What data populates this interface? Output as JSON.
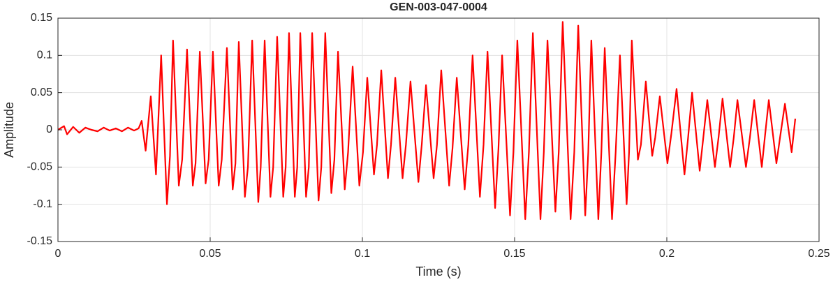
{
  "chart_data": {
    "type": "line",
    "title": "GEN-003-047-0004",
    "xlabel": "Time (s)",
    "ylabel": "Amplitude",
    "xlim": [
      0,
      0.25
    ],
    "xticks": [
      0,
      0.05,
      0.1,
      0.15,
      0.2,
      0.25
    ],
    "ylim": [
      -0.15,
      0.15
    ],
    "yticks": [
      -0.15,
      -0.1,
      -0.05,
      0,
      0.05,
      0.1,
      0.15
    ],
    "grid": true,
    "x": [
      0,
      0.002,
      0.003,
      0.005,
      0.007,
      0.009,
      0.011,
      0.013,
      0.015,
      0.017,
      0.019,
      0.021,
      0.023,
      0.025,
      0.0265,
      0.0275,
      0.0288,
      0.0305,
      0.0322,
      0.0339,
      0.0358,
      0.0368,
      0.0378,
      0.0397,
      0.0408,
      0.0424,
      0.0443,
      0.0452,
      0.0466,
      0.0485,
      0.0495,
      0.0509,
      0.0528,
      0.0538,
      0.0555,
      0.0574,
      0.0583,
      0.0594,
      0.0614,
      0.0624,
      0.0638,
      0.0658,
      0.0666,
      0.0679,
      0.0698,
      0.0707,
      0.072,
      0.074,
      0.0748,
      0.0759,
      0.0778,
      0.0786,
      0.0796,
      0.0815,
      0.0824,
      0.0835,
      0.0856,
      0.0865,
      0.0878,
      0.0898,
      0.0908,
      0.092,
      0.0942,
      0.0953,
      0.0968,
      0.099,
      0.1002,
      0.1016,
      0.1038,
      0.1048,
      0.1062,
      0.1084,
      0.1094,
      0.1108,
      0.1132,
      0.1143,
      0.1158,
      0.1184,
      0.1195,
      0.1209,
      0.1234,
      0.1245,
      0.1259,
      0.1285,
      0.1296,
      0.131,
      0.1336,
      0.1348,
      0.1362,
      0.1386,
      0.1398,
      0.1411,
      0.1436,
      0.1447,
      0.1459,
      0.1485,
      0.1496,
      0.1509,
      0.1535,
      0.1547,
      0.156,
      0.1585,
      0.1596,
      0.1608,
      0.1634,
      0.1645,
      0.1658,
      0.1684,
      0.1696,
      0.1709,
      0.1732,
      0.1742,
      0.1752,
      0.1775,
      0.1785,
      0.1796,
      0.182,
      0.1832,
      0.1846,
      0.1868,
      0.1876,
      0.1885,
      0.1905,
      0.1915,
      0.1931,
      0.1952,
      0.1962,
      0.1977,
      0.2002,
      0.2015,
      0.2032,
      0.2058,
      0.207,
      0.2083,
      0.2108,
      0.212,
      0.2133,
      0.2158,
      0.217,
      0.2183,
      0.2208,
      0.222,
      0.2232,
      0.226,
      0.2273,
      0.2287,
      0.2312,
      0.2322,
      0.2335,
      0.236,
      0.2372,
      0.2388,
      0.241,
      0.2422
    ],
    "series": [
      {
        "color": "#ff0000",
        "values": [
          0,
          0.005,
          -0.006,
          0.004,
          -0.004,
          0.003,
          0,
          -0.002,
          0.003,
          -0.001,
          0.002,
          -0.002,
          0.003,
          -0.001,
          0.002,
          0.012,
          -0.028,
          0.045,
          -0.06,
          0.1,
          -0.1,
          -0.035,
          0.12,
          -0.075,
          -0.04,
          0.108,
          -0.075,
          -0.045,
          0.105,
          -0.072,
          -0.04,
          0.105,
          -0.075,
          -0.04,
          0.11,
          -0.08,
          -0.045,
          0.118,
          -0.09,
          -0.05,
          0.12,
          -0.097,
          -0.05,
          0.12,
          -0.09,
          -0.05,
          0.125,
          -0.09,
          -0.05,
          0.13,
          -0.09,
          -0.05,
          0.13,
          -0.09,
          -0.05,
          0.13,
          -0.095,
          -0.05,
          0.13,
          -0.085,
          -0.04,
          0.105,
          -0.08,
          -0.03,
          0.085,
          -0.075,
          -0.03,
          0.07,
          -0.06,
          -0.02,
          0.08,
          -0.065,
          -0.02,
          0.07,
          -0.065,
          -0.02,
          0.065,
          -0.07,
          -0.02,
          0.06,
          -0.065,
          -0.02,
          0.08,
          -0.075,
          -0.025,
          0.07,
          -0.08,
          -0.02,
          0.1,
          -0.09,
          -0.02,
          0.105,
          -0.105,
          -0.025,
          0.1,
          -0.115,
          -0.03,
          0.12,
          -0.12,
          -0.03,
          0.13,
          -0.12,
          -0.03,
          0.12,
          -0.11,
          -0.03,
          0.145,
          -0.12,
          -0.03,
          0.14,
          -0.115,
          -0.03,
          0.12,
          -0.12,
          -0.03,
          0.11,
          -0.12,
          -0.03,
          0.1,
          -0.1,
          -0.03,
          0.12,
          -0.04,
          -0.02,
          0.065,
          -0.035,
          -0.01,
          0.045,
          -0.045,
          -0.005,
          0.055,
          -0.06,
          -0.01,
          0.05,
          -0.055,
          -0.01,
          0.04,
          -0.05,
          -0.01,
          0.042,
          -0.05,
          -0.01,
          0.04,
          -0.05,
          -0.01,
          0.04,
          -0.05,
          -0.01,
          0.04,
          -0.045,
          -0.01,
          0.035,
          -0.03,
          0.015
        ]
      }
    ]
  }
}
